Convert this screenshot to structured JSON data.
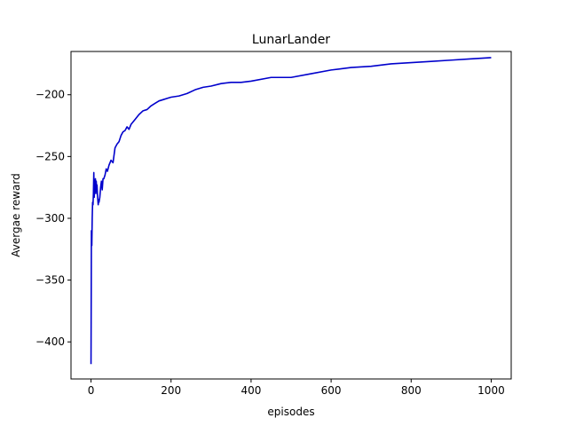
{
  "chart_data": {
    "type": "line",
    "title": "LunarLander",
    "xlabel": "episodes",
    "ylabel": "Avergae reward",
    "xlim": [
      -50,
      1050
    ],
    "ylim": [
      -430,
      -165
    ],
    "xticks": [
      0,
      200,
      400,
      600,
      800,
      1000
    ],
    "yticks": [
      -400,
      -350,
      -300,
      -250,
      -200
    ],
    "grid": false,
    "series": [
      {
        "color": "#0000cc",
        "x": [
          0,
          1,
          2,
          3,
          4,
          5,
          6,
          7,
          8,
          9,
          10,
          11,
          12,
          13,
          14,
          15,
          16,
          17,
          18,
          19,
          20,
          22,
          24,
          26,
          28,
          30,
          32,
          35,
          38,
          41,
          45,
          50,
          55,
          60,
          65,
          70,
          75,
          80,
          85,
          90,
          95,
          100,
          110,
          120,
          130,
          140,
          150,
          160,
          170,
          180,
          190,
          200,
          220,
          240,
          260,
          280,
          300,
          325,
          350,
          375,
          400,
          450,
          500,
          550,
          600,
          650,
          700,
          750,
          800,
          850,
          900,
          950,
          1000
        ],
        "y": [
          -418,
          -310,
          -322,
          -300,
          -287,
          -289,
          -280,
          -263,
          -283,
          -270,
          -276,
          -268,
          -280,
          -270,
          -275,
          -273,
          -280,
          -285,
          -289,
          -285,
          -287,
          -283,
          -275,
          -270,
          -277,
          -268,
          -268,
          -265,
          -260,
          -262,
          -257,
          -253,
          -255,
          -243,
          -240,
          -238,
          -233,
          -230,
          -229,
          -226,
          -228,
          -224,
          -220,
          -216,
          -213,
          -212,
          -209,
          -207,
          -205,
          -204,
          -203,
          -202,
          -201,
          -199,
          -196,
          -194,
          -193,
          -191,
          -190,
          -190,
          -189,
          -186,
          -186,
          -183,
          -180,
          -178,
          -177,
          -175,
          -174,
          -173,
          -172,
          -171,
          -170
        ]
      }
    ]
  }
}
